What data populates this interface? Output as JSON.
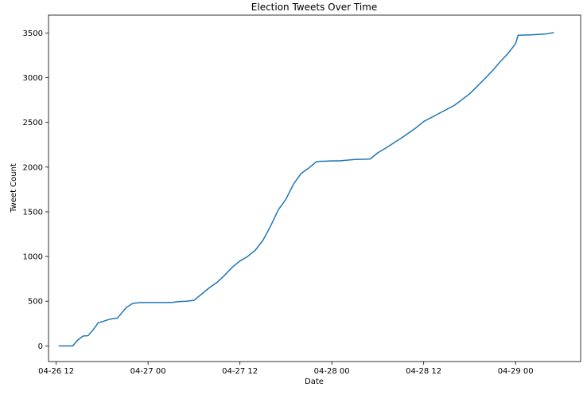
{
  "chart_data": {
    "type": "line",
    "title": "Election Tweets Over Time",
    "xlabel": "Date",
    "ylabel": "Tweet Count",
    "x_ticks": [
      {
        "date": "2020-04-26T12:00",
        "label": "04-26 12"
      },
      {
        "date": "2020-04-27T00:00",
        "label": "04-27 00"
      },
      {
        "date": "2020-04-27T12:00",
        "label": "04-27 12"
      },
      {
        "date": "2020-04-28T00:00",
        "label": "04-28 00"
      },
      {
        "date": "2020-04-28T12:00",
        "label": "04-28 12"
      },
      {
        "date": "2020-04-29T00:00",
        "label": "04-29 00"
      }
    ],
    "y_ticks": [
      0,
      500,
      1000,
      1500,
      2000,
      2500,
      3000,
      3500
    ],
    "xlim": [
      "2020-04-26T11:00",
      "2020-04-29T08:30"
    ],
    "ylim": [
      -175,
      3700
    ],
    "grid": false,
    "line_color": "#1f77b4",
    "series": [
      {
        "x": [
          "2020-04-26T12:20",
          "2020-04-26T13:20",
          "2020-04-26T14:10",
          "2020-04-26T14:45",
          "2020-04-26T15:30",
          "2020-04-26T16:10",
          "2020-04-26T16:50",
          "2020-04-26T17:30",
          "2020-04-26T18:00",
          "2020-04-26T18:40",
          "2020-04-26T19:20",
          "2020-04-26T20:00",
          "2020-04-26T20:40",
          "2020-04-26T21:10",
          "2020-04-26T22:00",
          "2020-04-26T23:00",
          "2020-04-27T00:00",
          "2020-04-27T03:00",
          "2020-04-27T04:00",
          "2020-04-27T05:00",
          "2020-04-27T06:00",
          "2020-04-27T07:00",
          "2020-04-27T08:00",
          "2020-04-27T09:00",
          "2020-04-27T10:00",
          "2020-04-27T11:00",
          "2020-04-27T12:00",
          "2020-04-27T13:00",
          "2020-04-27T14:00",
          "2020-04-27T15:00",
          "2020-04-27T16:00",
          "2020-04-27T17:00",
          "2020-04-27T18:00",
          "2020-04-27T19:00",
          "2020-04-27T20:00",
          "2020-04-27T21:00",
          "2020-04-27T22:00",
          "2020-04-27T22:30",
          "2020-04-27T23:00",
          "2020-04-28T00:00",
          "2020-04-28T01:00",
          "2020-04-28T03:00",
          "2020-04-28T05:00",
          "2020-04-28T06:00",
          "2020-04-28T07:00",
          "2020-04-28T09:00",
          "2020-04-28T11:00",
          "2020-04-28T12:00",
          "2020-04-28T14:00",
          "2020-04-28T16:00",
          "2020-04-28T18:00",
          "2020-04-28T20:00",
          "2020-04-28T21:00",
          "2020-04-28T22:00",
          "2020-04-28T23:00",
          "2020-04-29T00:00",
          "2020-04-29T00:20",
          "2020-04-29T02:00",
          "2020-04-29T04:00",
          "2020-04-29T05:00"
        ],
        "y": [
          0,
          0,
          0,
          60,
          110,
          115,
          180,
          260,
          270,
          290,
          305,
          310,
          380,
          430,
          475,
          485,
          485,
          485,
          495,
          500,
          510,
          580,
          650,
          710,
          790,
          880,
          950,
          1000,
          1070,
          1180,
          1340,
          1520,
          1640,
          1810,
          1930,
          1990,
          2060,
          2065,
          2065,
          2070,
          2070,
          2085,
          2090,
          2160,
          2210,
          2320,
          2440,
          2510,
          2600,
          2690,
          2820,
          2990,
          3080,
          3180,
          3270,
          3380,
          3475,
          3480,
          3490,
          3505
        ]
      }
    ]
  }
}
